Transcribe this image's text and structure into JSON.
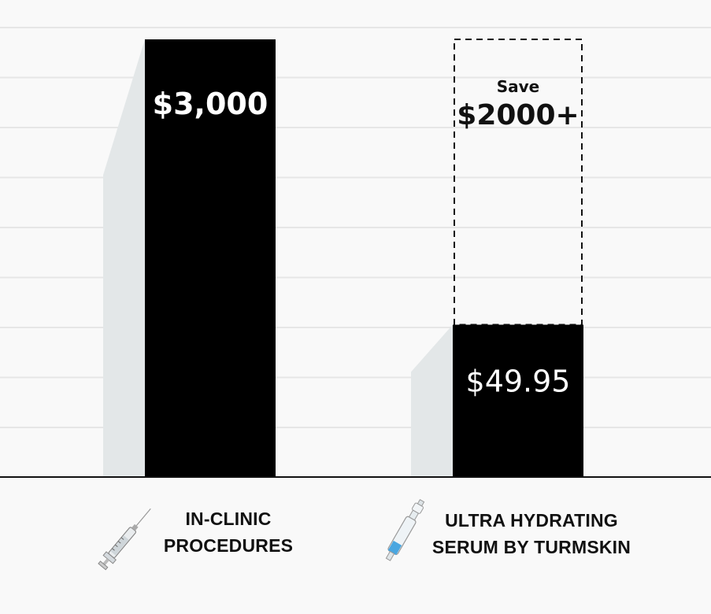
{
  "chart_data": {
    "type": "bar",
    "categories": [
      "IN-CLINIC PROCEDURES",
      "ULTRA HYDRATING SERUM BY TURMSKIN"
    ],
    "values": [
      3000,
      49.95
    ],
    "value_labels": [
      "$3,000",
      "$49.95"
    ],
    "annotation": {
      "line1": "Save",
      "line2": "$2000+"
    },
    "grid": true,
    "colors": {
      "bar": "#000000",
      "shadow": "#e3e7e8",
      "grid": "#e6e6e6",
      "background": "#f9f9f9"
    }
  },
  "labels": {
    "cat1_line1": "IN-CLINIC",
    "cat1_line2": "PROCEDURES",
    "cat2_line1": "ULTRA HYDRATING",
    "cat2_line2": "SERUM BY TURMSKIN"
  },
  "icons": {
    "cat1": "syringe-icon",
    "cat2": "serum-ampoule-icon"
  }
}
